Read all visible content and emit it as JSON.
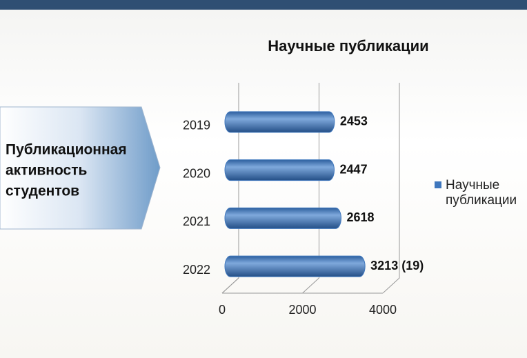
{
  "slide": {
    "label_lines": [
      "Публикационная",
      "активность",
      "студентов"
    ]
  },
  "chart_data": {
    "type": "bar",
    "orientation": "horizontal",
    "title": "Научные публикации",
    "categories": [
      "2019",
      "2020",
      "2021",
      "2022"
    ],
    "series": [
      {
        "name": "Научные публикации",
        "color": "#3f77bd",
        "values": [
          2453,
          2447,
          2618,
          3213
        ],
        "value_labels": [
          "2453",
          "2447",
          "2618",
          "3213 (19)"
        ]
      }
    ],
    "xlim": [
      0,
      4000
    ],
    "xticks": [
      0,
      2000,
      4000
    ],
    "grid": true,
    "legend": "right"
  }
}
